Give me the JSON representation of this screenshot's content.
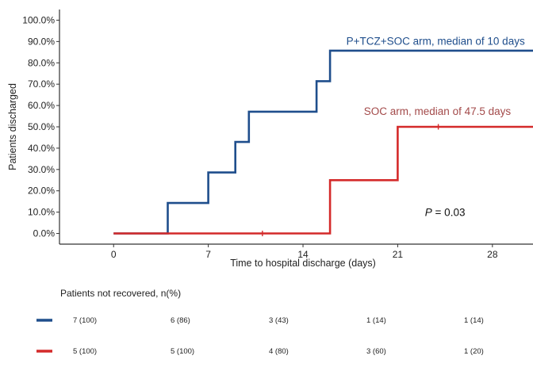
{
  "chart_data": {
    "type": "line",
    "step": true,
    "xlabel": "Time to hospital discharge (days)",
    "ylabel": "Patients discharged",
    "xlim": [
      -4,
      31
    ],
    "ylim": [
      -5,
      105
    ],
    "x_ticks": [
      0,
      7,
      14,
      21,
      28
    ],
    "x_tick_labels": [
      "0",
      "7",
      "14",
      "21",
      "28"
    ],
    "y_ticks": [
      0,
      10,
      20,
      30,
      40,
      50,
      60,
      70,
      80,
      90,
      100
    ],
    "y_tick_labels": [
      "0.0%",
      "10.0%",
      "20.0%",
      "30.0%",
      "40.0%",
      "50.0%",
      "60.0%",
      "70.0%",
      "80.0%",
      "90.0%",
      "100.0%"
    ],
    "grid": false,
    "series": [
      {
        "name": "P+TCZ+SOC arm, median of 10 days",
        "color": "#1f4e8c",
        "x": [
          0,
          4,
          4,
          7,
          7,
          9,
          9,
          10,
          10,
          15,
          15,
          16,
          16,
          31
        ],
        "y": [
          0,
          0,
          14.3,
          14.3,
          28.6,
          28.6,
          42.9,
          42.9,
          57.1,
          57.1,
          71.4,
          71.4,
          85.7,
          85.7
        ],
        "censor_marks": []
      },
      {
        "name": "SOC arm, median of 47.5 days",
        "color": "#d42a2a",
        "label_color": "#a34a4a",
        "x": [
          0,
          16,
          16,
          21,
          21,
          31
        ],
        "y": [
          0,
          0,
          25,
          25,
          50,
          50
        ],
        "censor_marks": [
          {
            "x": 11,
            "y": 0
          },
          {
            "x": 24,
            "y": 50
          }
        ]
      }
    ],
    "annotations": [
      {
        "text_prefix": "P",
        "text_suffix": " = 0.03",
        "x": 24.5,
        "y": 10
      }
    ],
    "risk_table": {
      "title": "Patients not recovered, n(%)",
      "columns_x": [
        0,
        7,
        14,
        21,
        28
      ],
      "rows": [
        {
          "color": "#1f4e8c",
          "values": [
            "7 (100)",
            "6 (86)",
            "3 (43)",
            "1 (14)",
            "1 (14)"
          ]
        },
        {
          "color": "#d42a2a",
          "values": [
            "5 (100)",
            "5 (100)",
            "4 (80)",
            "3 (60)",
            "1 (20)"
          ]
        }
      ]
    }
  }
}
